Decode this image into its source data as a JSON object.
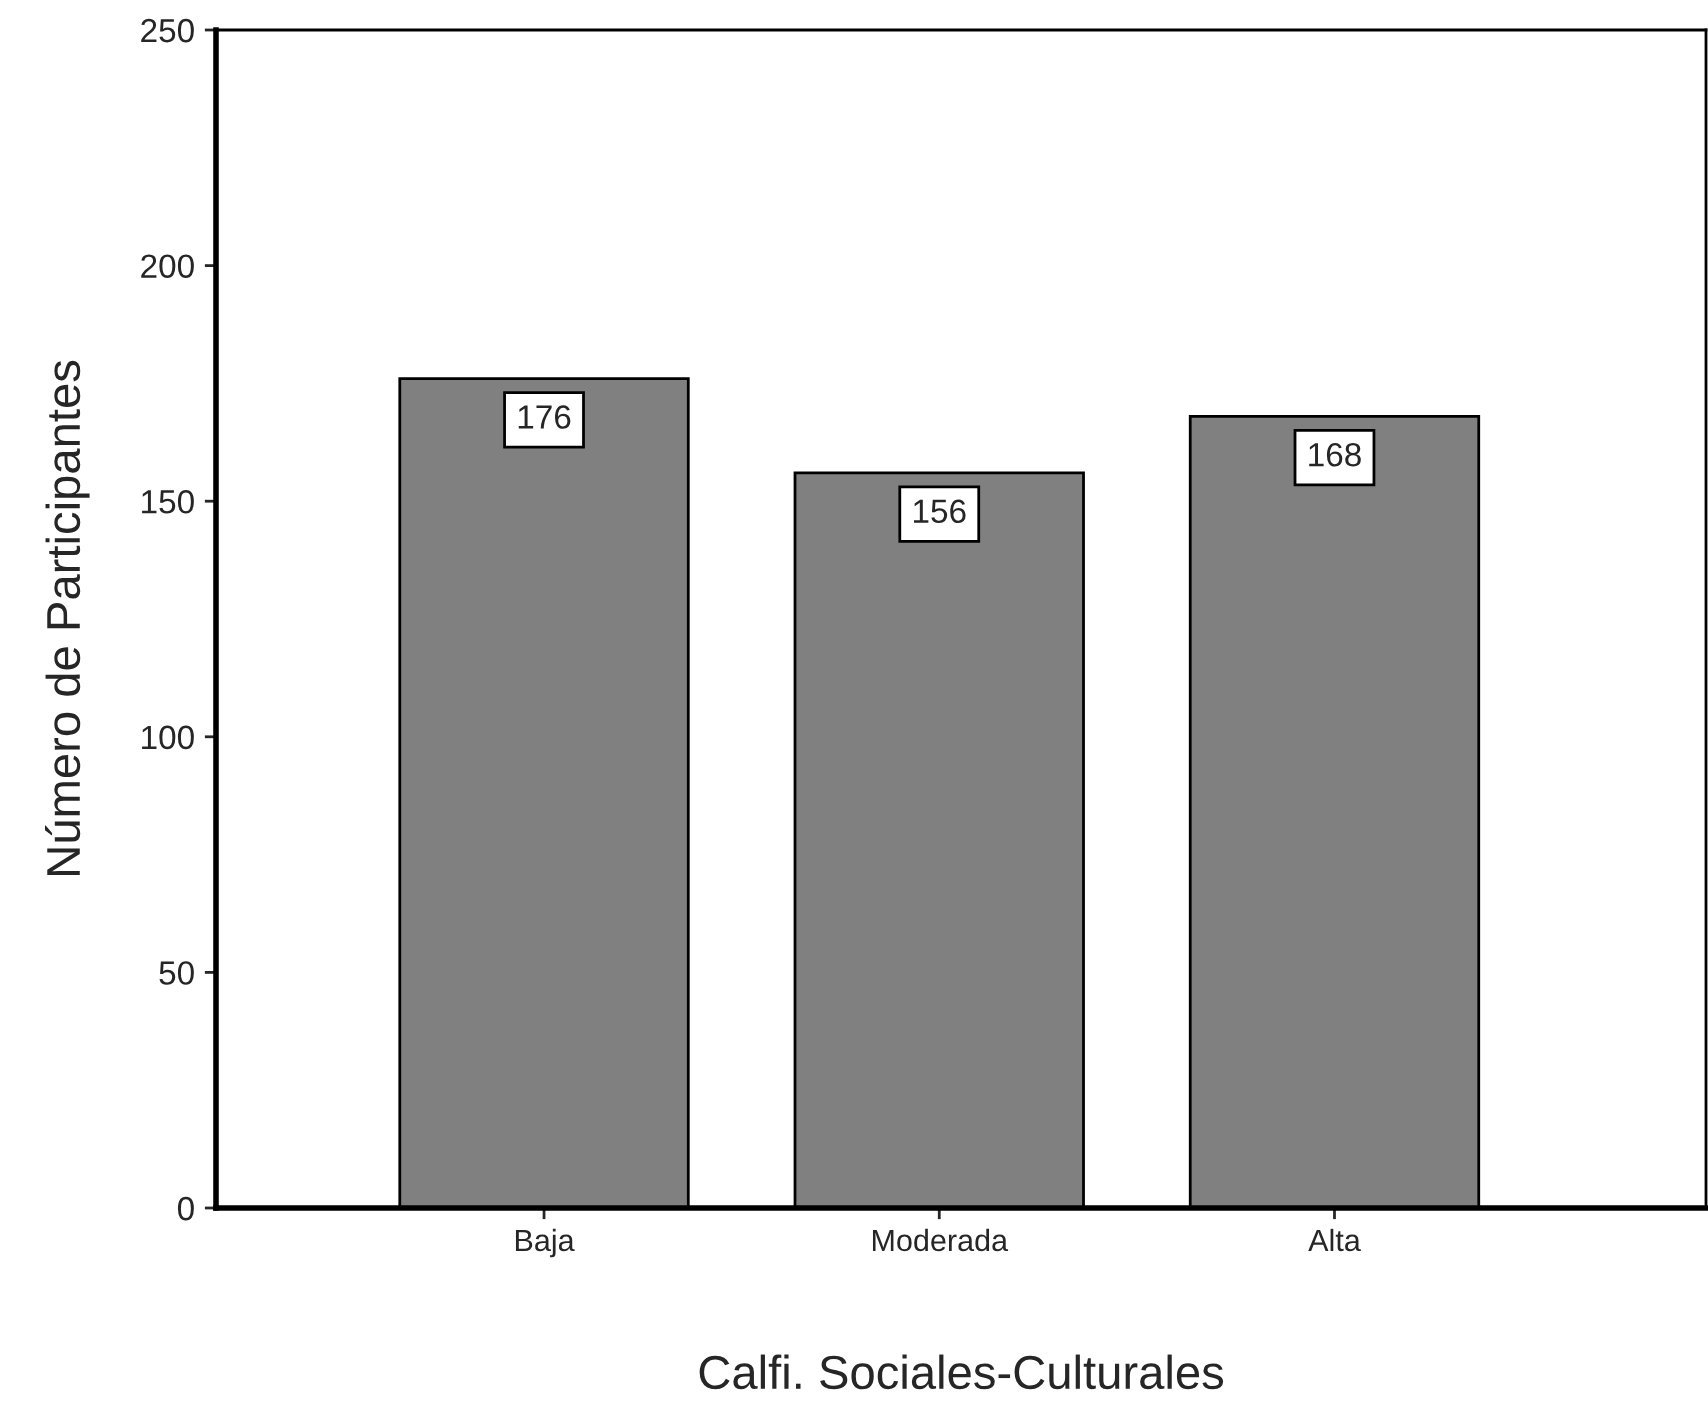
{
  "chart_data": {
    "type": "bar",
    "xlabel": "Calfi. Sociales-Culturales",
    "ylabel": "Número de Participantes",
    "categories": [
      "Baja",
      "Moderada",
      "Alta"
    ],
    "values": [
      176,
      156,
      168
    ],
    "color": "#808080",
    "ylim": [
      0,
      250
    ],
    "yticks": [
      0,
      50,
      100,
      150,
      200,
      250
    ],
    "grid": false,
    "data_labels": true
  }
}
